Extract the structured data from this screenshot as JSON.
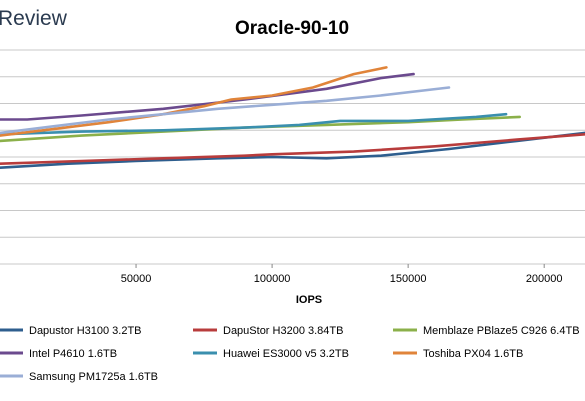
{
  "header": {
    "brand_text": "Review"
  },
  "chart_data": {
    "type": "line",
    "title": "Oracle-90-10",
    "xlabel": "IOPS",
    "ylabel": "",
    "xlim": [
      0,
      215000
    ],
    "ylim": [
      0,
      8
    ],
    "x_ticks": [
      50000,
      100000,
      150000,
      200000
    ],
    "x_tick_labels": [
      "50000",
      "100000",
      "150000",
      "200000"
    ],
    "grid": true,
    "legend_position": "bottom",
    "series": [
      {
        "name": "Dapustor H3100 3.2TB",
        "color": "#2e5e8e",
        "x": [
          0,
          25000,
          50000,
          80000,
          100000,
          120000,
          140000,
          165000,
          190000,
          215000
        ],
        "y": [
          3.6,
          3.75,
          3.85,
          3.95,
          4.0,
          3.95,
          4.05,
          4.3,
          4.6,
          4.9
        ]
      },
      {
        "name": "DapuStor H3200 3.84TB",
        "color": "#b83c3c",
        "x": [
          0,
          30000,
          60000,
          90000,
          100000,
          130000,
          160000,
          190000,
          215000
        ],
        "y": [
          3.75,
          3.85,
          3.95,
          4.05,
          4.1,
          4.2,
          4.4,
          4.65,
          4.85
        ]
      },
      {
        "name": "Memblaze PBlaze5 C926 6.4TB",
        "color": "#8bb04a",
        "x": [
          0,
          30000,
          60000,
          90000,
          120000,
          150000,
          170000,
          191000
        ],
        "y": [
          4.6,
          4.8,
          4.95,
          5.1,
          5.2,
          5.3,
          5.4,
          5.5
        ]
      },
      {
        "name": "Intel P4610 1.6TB",
        "color": "#6b4a8e",
        "x": [
          0,
          10000,
          30000,
          60000,
          90000,
          120000,
          140000,
          152000
        ],
        "y": [
          5.4,
          5.4,
          5.55,
          5.8,
          6.15,
          6.55,
          6.95,
          7.1
        ]
      },
      {
        "name": "Huawei ES3000 v5 3.2TB",
        "color": "#3a8fae",
        "x": [
          0,
          30000,
          60000,
          90000,
          110000,
          125000,
          150000,
          175000,
          186000
        ],
        "y": [
          4.85,
          4.95,
          5.0,
          5.1,
          5.2,
          5.35,
          5.35,
          5.5,
          5.6
        ]
      },
      {
        "name": "Toshiba PX04 1.6TB",
        "color": "#e0843a",
        "x": [
          0,
          20000,
          40000,
          60000,
          75000,
          85000,
          100000,
          115000,
          130000,
          142000
        ],
        "y": [
          4.8,
          5.05,
          5.3,
          5.6,
          5.9,
          6.15,
          6.3,
          6.6,
          7.1,
          7.35
        ]
      },
      {
        "name": "Samsung PM1725a 1.6TB",
        "color": "#9aaed6",
        "x": [
          0,
          20000,
          40000,
          60000,
          80000,
          100000,
          120000,
          140000,
          165000
        ],
        "y": [
          4.9,
          5.15,
          5.4,
          5.6,
          5.8,
          5.95,
          6.1,
          6.3,
          6.6
        ]
      }
    ]
  }
}
